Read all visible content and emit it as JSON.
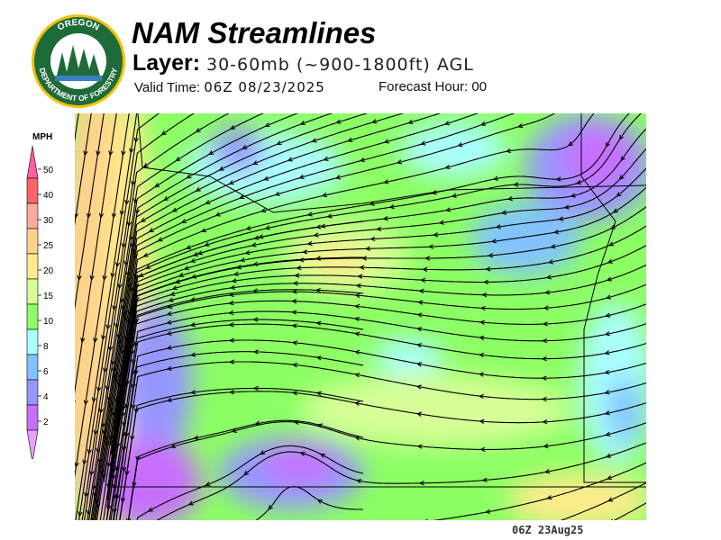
{
  "header": {
    "title": "NAM Streamlines",
    "layer_label": "Layer:",
    "layer_value": "30-60mb (~900-1800ft) AGL",
    "valid_label": "Valid Time:",
    "valid_value": "06Z 08/23/2025",
    "forecast_label": "Forecast Hour:",
    "forecast_value": "00"
  },
  "logo": {
    "text_top": "OREGON",
    "text_bottom": "DEPARTMENT OF FORESTRY"
  },
  "legend": {
    "unit": "MPH",
    "ticks": [
      "50",
      "40",
      "30",
      "25",
      "20",
      "15",
      "10",
      "8",
      "6",
      "4",
      "2"
    ],
    "colors": [
      "#ff5f9f",
      "#ff6464",
      "#ffaaa0",
      "#ffd28c",
      "#ffeb8c",
      "#d7ff96",
      "#8cff64",
      "#aaffff",
      "#82c3ff",
      "#9696ff",
      "#c86eff",
      "#e6a0ff"
    ]
  },
  "footer": {
    "timestamp": "06Z 23Aug25"
  }
}
